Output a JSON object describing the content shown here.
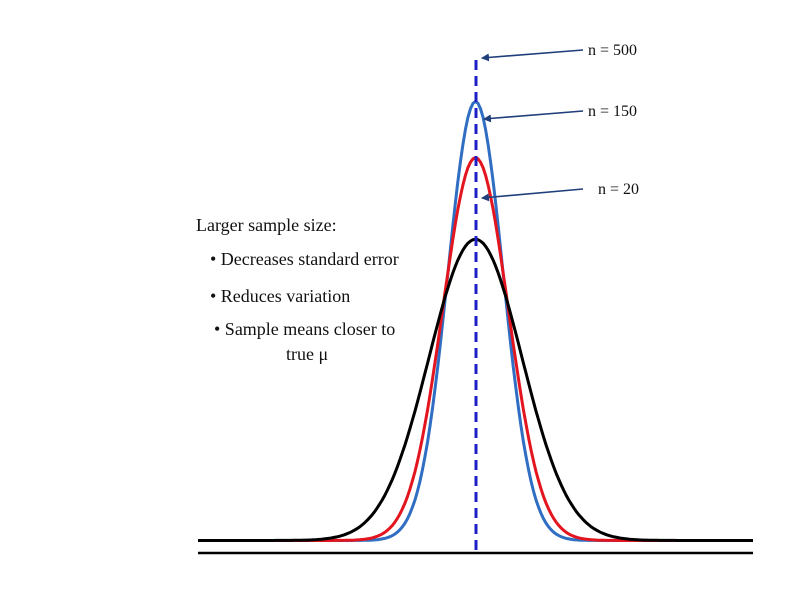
{
  "chart_data": {
    "type": "line",
    "series": [
      {
        "name": "n = 500",
        "peak": 0.86,
        "sd": 0.28,
        "color": "#2F6EC2"
      },
      {
        "name": "n = 150",
        "peak": 0.75,
        "sd": 0.33,
        "color": "#E3151F"
      },
      {
        "name": "n = 20",
        "peak": 0.59,
        "sd": 0.47,
        "color": "#000000"
      }
    ],
    "mean_line": {
      "color": "#1F1FC8",
      "style": "dashed"
    },
    "baseline_value": 0.0,
    "x_range": [
      -2.8,
      2.8
    ],
    "y_range": [
      -0.05,
      1.0
    ],
    "grid": false,
    "legend": "annotations with arrows pointing to each peak"
  },
  "notes": {
    "title": "Larger sample size:",
    "bullets": [
      "• Decreases standard error",
      "• Reduces variation",
      "• Sample means closer to"
    ],
    "bullet3_continuation": "true μ"
  },
  "colors": {
    "arrow": "#1F3E7A",
    "axis": "#000000"
  }
}
